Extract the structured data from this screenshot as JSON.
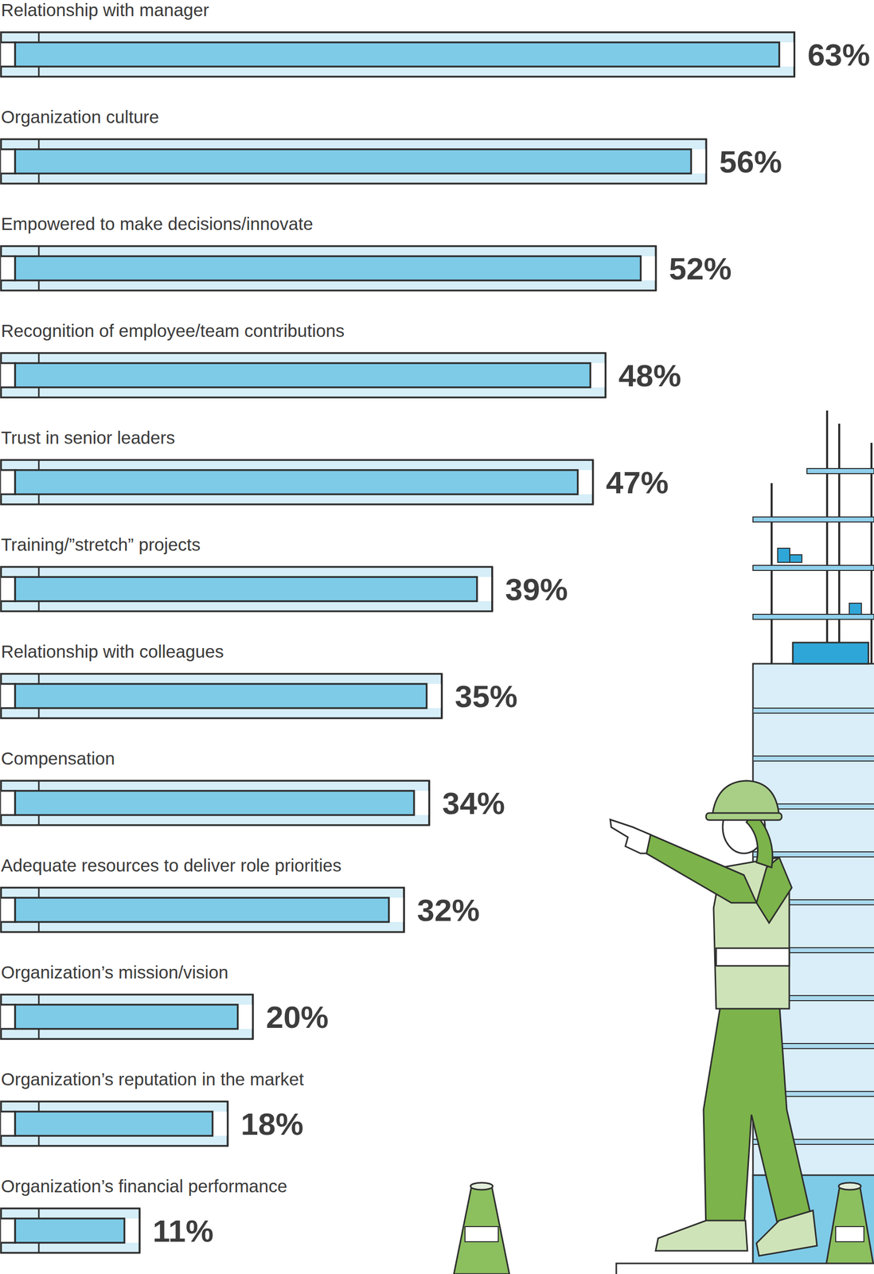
{
  "chart_data": {
    "type": "bar",
    "orientation": "horizontal",
    "categories": [
      "Relationship with manager",
      "Organization culture",
      "Empowered to make decisions/innovate",
      "Recognition of employee/team contributions",
      "Trust in senior leaders",
      "Training/”stretch” projects",
      "Relationship with colleagues",
      "Compensation",
      "Adequate resources to deliver role priorities",
      "Organization’s mission/vision",
      "Organization’s reputation in the market",
      "Organization’s financial performance"
    ],
    "values": [
      63,
      56,
      52,
      48,
      47,
      39,
      35,
      34,
      32,
      20,
      18,
      11
    ],
    "value_labels": [
      "63%",
      "56%",
      "52%",
      "48%",
      "47%",
      "39%",
      "35%",
      "34%",
      "32%",
      "20%",
      "18%",
      "11%"
    ],
    "color": "#7ecbe8",
    "xlim": [
      0,
      68
    ],
    "data_labels": true,
    "tick_labels": false
  }
}
